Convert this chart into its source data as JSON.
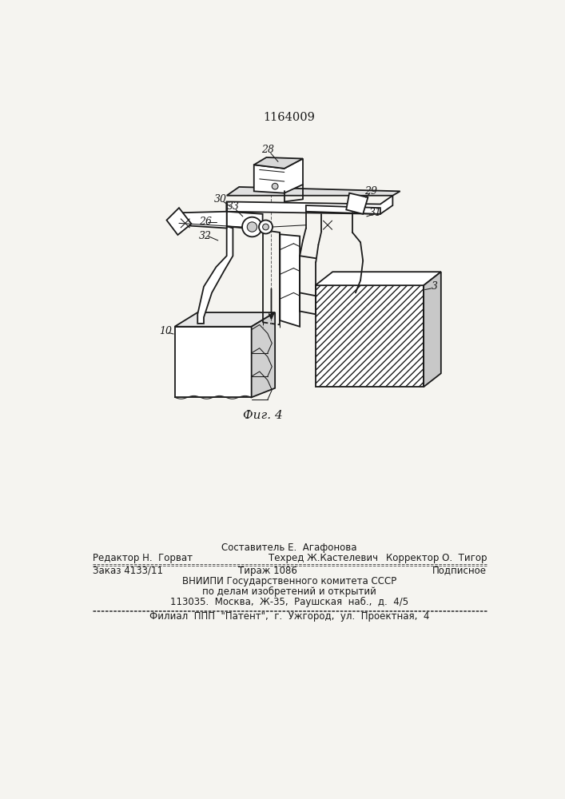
{
  "patent_number": "1164009",
  "figure_label": "Фиг. 4",
  "bg_color": "#f5f4f0",
  "line_color": "#1a1a1a",
  "footer_line0_center": "Составитель Е.  Агафонова",
  "footer_line1_left": "Редактор Н.  Горват",
  "footer_line1_center": "Техред Ж.Кастелевич",
  "footer_line1_right": "Корректор О.  Тигор",
  "footer_order": "Заказ 4133/11",
  "footer_tirazh": "Тираж 1086",
  "footer_podpisnoe": "Подписное",
  "footer_vniiipi": "ВНИИПИ Государственного комитета СССР",
  "footer_po_delam": "по делам изобретений и открытий",
  "footer_address": "113035.  Москва,  Ж-35,  Раушская  наб.,  д.  4/5",
  "footer_filial": "Филиал  ППП  \"Патент\",  г.  Ужгород,  ул.  Проектная,  4"
}
